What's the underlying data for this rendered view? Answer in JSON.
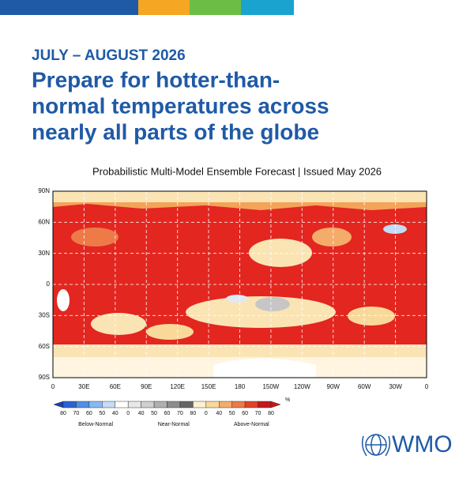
{
  "header": {
    "subtitle": "JULY – AUGUST 2026",
    "title_lines": [
      "Prepare for hotter-than-",
      "normal temperatures across",
      "nearly all parts of the globe"
    ]
  },
  "map": {
    "caption": "Probabilistic Multi-Model Ensemble Forecast | Issued May 2026",
    "lat_ticks": [
      "90N",
      "60N",
      "30N",
      "0",
      "30S",
      "60S",
      "90S"
    ],
    "lon_ticks": [
      "0",
      "30E",
      "60E",
      "90E",
      "120E",
      "150E",
      "180",
      "150W",
      "120W",
      "90W",
      "60W",
      "30W",
      "0"
    ]
  },
  "legend": {
    "values": [
      80,
      70,
      60,
      50,
      40,
      0,
      40,
      50,
      60,
      70,
      80,
      0,
      40,
      50,
      60,
      70,
      80
    ],
    "unit": "%",
    "groups": [
      "Below-Normal",
      "Near-Normal",
      "Above-Normal"
    ],
    "colors": [
      "#1a3fb0",
      "#2a63d6",
      "#4f8fe8",
      "#86b9f2",
      "#c3dcf7",
      "#ffffff",
      "#e8e8e8",
      "#cfcfcf",
      "#b0b0b0",
      "#8c8c8c",
      "#666666",
      "#fff1d0",
      "#f9d99a",
      "#f4ac6a",
      "#ee7a48",
      "#e2412a",
      "#c8161b"
    ]
  },
  "logo": {
    "text": "WMO"
  }
}
